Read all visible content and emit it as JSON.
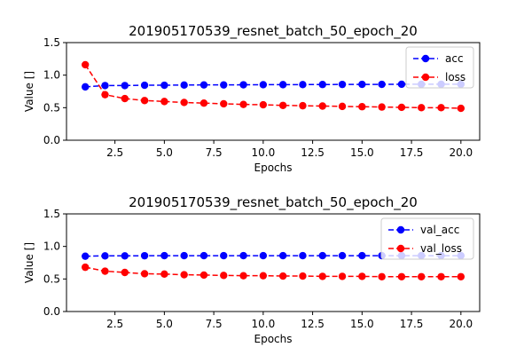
{
  "chart_data": [
    {
      "type": "line",
      "title": "201905170539_resnet_batch_50_epoch_20",
      "xlabel": "Epochs",
      "ylabel": "Value []",
      "xlim": [
        0.05,
        20.95
      ],
      "ylim": [
        0.0,
        1.5
      ],
      "xticks": [
        2.5,
        5.0,
        7.5,
        10.0,
        12.5,
        15.0,
        17.5,
        20.0
      ],
      "yticks": [
        0.0,
        0.5,
        1.0,
        1.5
      ],
      "grid": false,
      "legend_position": "top-right",
      "x": [
        1,
        2,
        3,
        4,
        5,
        6,
        7,
        8,
        9,
        10,
        11,
        12,
        13,
        14,
        15,
        16,
        17,
        18,
        19,
        20
      ],
      "series": [
        {
          "name": "acc",
          "color": "#0000ff",
          "style": "dashed-marker",
          "values": [
            0.82,
            0.84,
            0.84,
            0.845,
            0.845,
            0.848,
            0.85,
            0.85,
            0.852,
            0.853,
            0.854,
            0.855,
            0.856,
            0.857,
            0.858,
            0.858,
            0.86,
            0.86,
            0.86,
            0.86
          ]
        },
        {
          "name": "loss",
          "color": "#ff0000",
          "style": "dashed-marker",
          "values": [
            1.16,
            0.7,
            0.64,
            0.61,
            0.595,
            0.58,
            0.57,
            0.56,
            0.55,
            0.545,
            0.535,
            0.53,
            0.525,
            0.52,
            0.515,
            0.51,
            0.505,
            0.5,
            0.5,
            0.49
          ]
        }
      ]
    },
    {
      "type": "line",
      "title": "201905170539_resnet_batch_50_epoch_20",
      "xlabel": "Epochs",
      "ylabel": "Value []",
      "xlim": [
        0.05,
        20.95
      ],
      "ylim": [
        0.0,
        1.5
      ],
      "xticks": [
        2.5,
        5.0,
        7.5,
        10.0,
        12.5,
        15.0,
        17.5,
        20.0
      ],
      "yticks": [
        0.0,
        0.5,
        1.0,
        1.5
      ],
      "grid": false,
      "legend_position": "top-right",
      "x": [
        1,
        2,
        3,
        4,
        5,
        6,
        7,
        8,
        9,
        10,
        11,
        12,
        13,
        14,
        15,
        16,
        17,
        18,
        19,
        20
      ],
      "series": [
        {
          "name": "val_acc",
          "color": "#0000ff",
          "style": "dashed-marker",
          "values": [
            0.85,
            0.855,
            0.855,
            0.857,
            0.858,
            0.858,
            0.858,
            0.858,
            0.858,
            0.858,
            0.858,
            0.858,
            0.858,
            0.858,
            0.858,
            0.858,
            0.858,
            0.858,
            0.858,
            0.858
          ]
        },
        {
          "name": "val_loss",
          "color": "#ff0000",
          "style": "dashed-marker",
          "values": [
            0.68,
            0.62,
            0.6,
            0.58,
            0.575,
            0.565,
            0.56,
            0.555,
            0.55,
            0.55,
            0.545,
            0.545,
            0.54,
            0.54,
            0.54,
            0.535,
            0.535,
            0.535,
            0.535,
            0.535
          ]
        }
      ]
    }
  ]
}
